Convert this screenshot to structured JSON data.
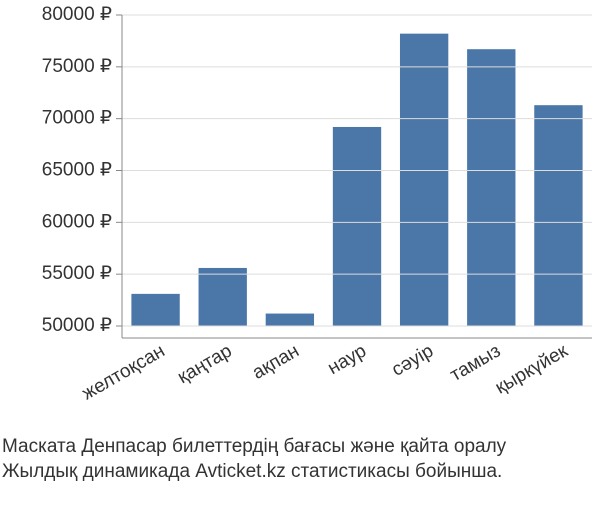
{
  "chart_data": {
    "type": "bar",
    "title": [
      "Маската Денпасар билеттердің бағасы және қайта оралу",
      "Жылдық динамикада Avticket.kz статистикасы бойынша."
    ],
    "categories": [
      "желтоқсан",
      "қаңтар",
      "ақпан",
      "наур",
      "сәуір",
      "тамыз",
      "қыркүйек"
    ],
    "values": [
      53100,
      55600,
      51200,
      69200,
      78200,
      76700,
      71300
    ],
    "color": "#4a76a8",
    "ylim": [
      50000,
      80000
    ],
    "yticks": [
      {
        "value": 50000,
        "label": "50000 ₽"
      },
      {
        "value": 55000,
        "label": "55000 ₽"
      },
      {
        "value": 60000,
        "label": "60000 ₽"
      },
      {
        "value": 65000,
        "label": "65000 ₽"
      },
      {
        "value": 70000,
        "label": "70000 ₽"
      },
      {
        "value": 75000,
        "label": "75000 ₽"
      },
      {
        "value": 80000,
        "label": "80000 ₽"
      }
    ],
    "grid": true
  }
}
